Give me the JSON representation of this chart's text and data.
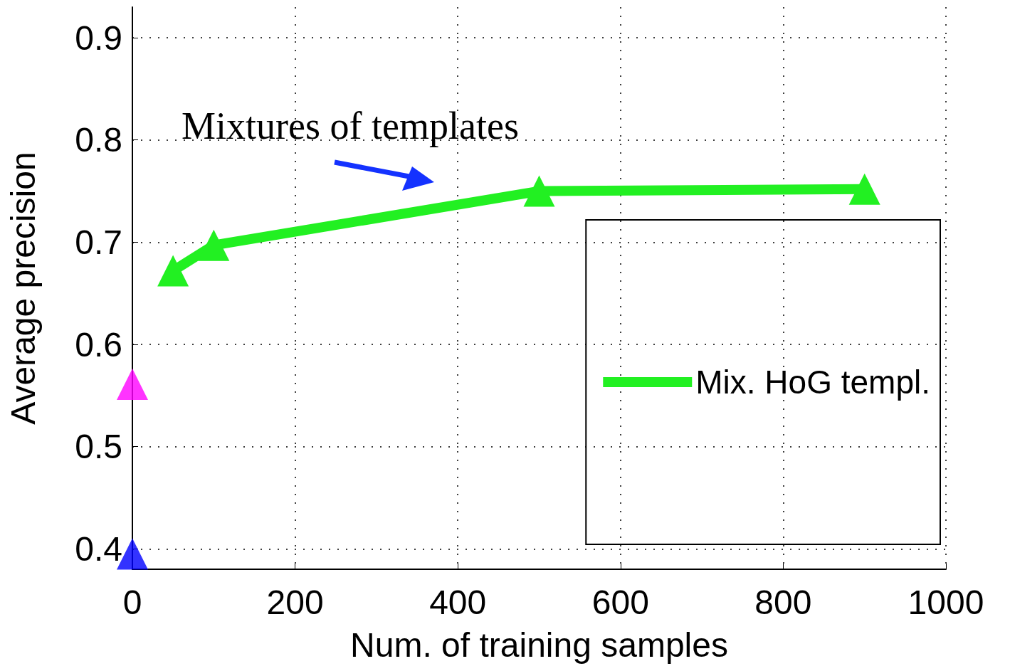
{
  "chart_data": {
    "type": "line",
    "xlabel": "Num. of training samples",
    "ylabel": "Average precision",
    "annotations": [
      "Mixtures of templates"
    ],
    "series": [
      {
        "name": "Mix. HoG templ.",
        "color": "#22f022",
        "x": [
          50,
          100,
          500,
          900
        ],
        "values": [
          0.672,
          0.697,
          0.75,
          0.752
        ]
      },
      {
        "type": "scatter",
        "color": "#ff00ff",
        "x": [
          0
        ],
        "values": [
          0.561
        ]
      },
      {
        "type": "scatter",
        "color": "#0000ff",
        "x": [
          0
        ],
        "values": [
          0.395
        ]
      }
    ],
    "xlim": [
      0,
      1000
    ],
    "xticks": [
      0,
      200,
      400,
      600,
      800,
      1000
    ],
    "ylim": [
      0.38,
      0.93
    ],
    "yticks": [
      0.4,
      0.5,
      0.6,
      0.7,
      0.8,
      0.9
    ],
    "grid": true,
    "legend": "bottom right",
    "marker": "triangle",
    "line_style": "solid"
  }
}
